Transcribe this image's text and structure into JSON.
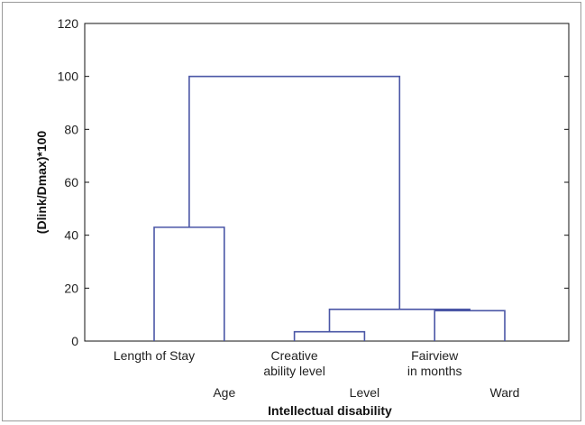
{
  "chart_data": {
    "type": "dendrogram",
    "title": "",
    "xlabel": "Intellectual disability",
    "ylabel": "(Dlink/Dmax)*100",
    "ylim": [
      0,
      120
    ],
    "yticks": [
      0,
      20,
      40,
      60,
      80,
      100,
      120
    ],
    "grid": false,
    "leaves": [
      {
        "label": [
          "Length of Stay"
        ],
        "row": "upper"
      },
      {
        "label": [
          "Age"
        ],
        "row": "lower"
      },
      {
        "label": [
          "Creative",
          "ability level"
        ],
        "row": "upper"
      },
      {
        "label": [
          "Level"
        ],
        "row": "lower"
      },
      {
        "label": [
          "Fairview",
          "in months"
        ],
        "row": "upper"
      },
      {
        "label": [
          "Ward"
        ],
        "row": "lower"
      }
    ],
    "merges": [
      {
        "left": "Length of Stay",
        "right": "Age",
        "height": 43
      },
      {
        "left": "Creative ability level",
        "right": "Level",
        "height": 3.5
      },
      {
        "left": "Fairview in months",
        "right": "Ward",
        "height": 11.5
      },
      {
        "left": "Creative ability level + Level",
        "right": "Fairview in months + Ward",
        "height": 12
      },
      {
        "left": "Length of Stay + Age",
        "right": "Creative ability level + Level + Fairview in months + Ward",
        "height": 100
      }
    ],
    "link_color": "#4a56a6"
  }
}
